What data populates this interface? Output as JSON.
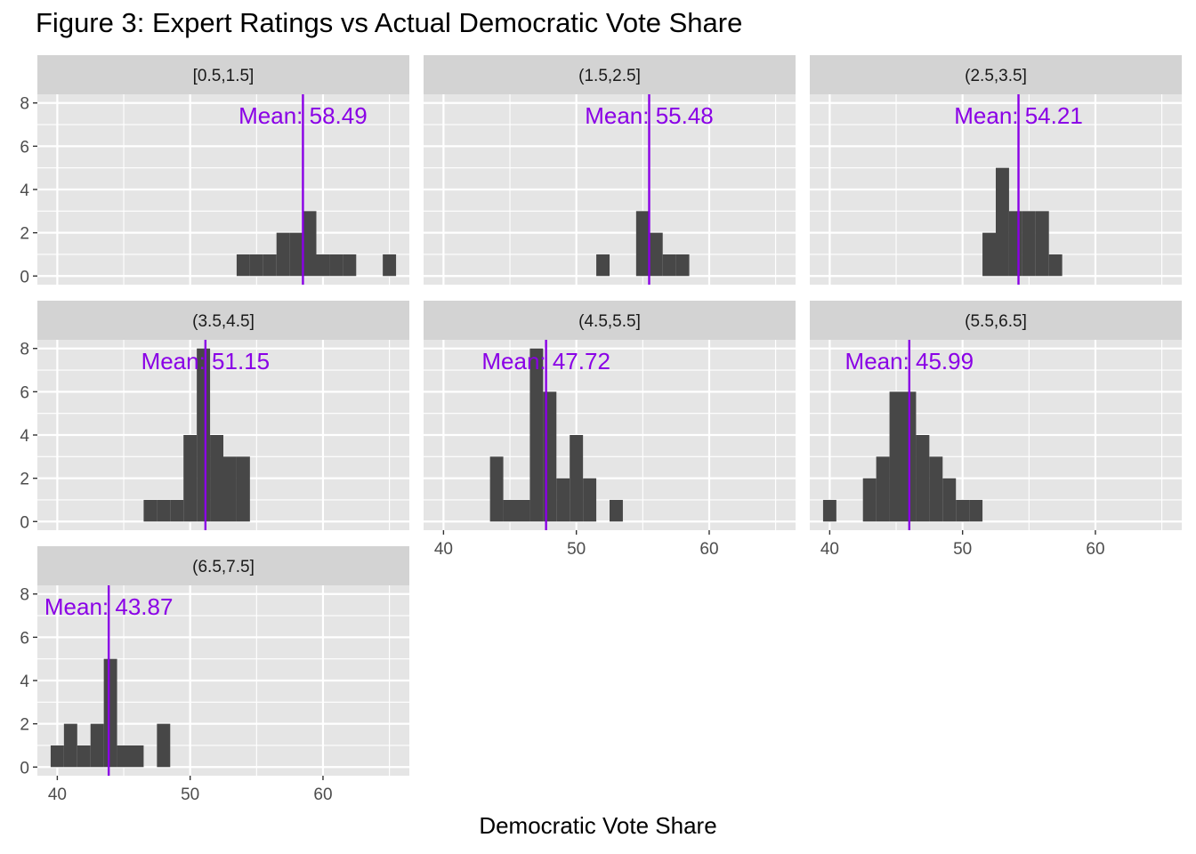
{
  "chart_data": {
    "type": "histogram-facets",
    "title": "Figure 3: Expert Ratings vs Actual Democratic Vote Share",
    "xlabel": "Democratic Vote Share",
    "ylabel": "",
    "xlim": [
      38.5,
      66.5
    ],
    "ylim": [
      -0.4,
      8.4
    ],
    "x_ticks": [
      40,
      50,
      60
    ],
    "y_ticks": [
      0,
      2,
      4,
      6,
      8
    ],
    "bin_width": 1,
    "colors": {
      "bars": "#474747",
      "mean_line": "#8A00E6",
      "panel_bg": "#E5E5E5",
      "strip_bg": "#D3D3D3",
      "grid": "#FFFFFF"
    },
    "facets": [
      {
        "label": "[0.5,1.5]",
        "mean": 58.49,
        "mean_label": "Mean: 58.49",
        "bins": [
          [
            54,
            1
          ],
          [
            55,
            1
          ],
          [
            56,
            1
          ],
          [
            57,
            2
          ],
          [
            58,
            2
          ],
          [
            59,
            3
          ],
          [
            60,
            1
          ],
          [
            61,
            1
          ],
          [
            62,
            1
          ],
          [
            65,
            1
          ]
        ]
      },
      {
        "label": "(1.5,2.5]",
        "mean": 55.48,
        "mean_label": "Mean: 55.48",
        "bins": [
          [
            52,
            1
          ],
          [
            55,
            3
          ],
          [
            56,
            2
          ],
          [
            57,
            1
          ],
          [
            58,
            1
          ]
        ]
      },
      {
        "label": "(2.5,3.5]",
        "mean": 54.21,
        "mean_label": "Mean: 54.21",
        "bins": [
          [
            52,
            2
          ],
          [
            53,
            5
          ],
          [
            54,
            3
          ],
          [
            55,
            3
          ],
          [
            56,
            3
          ],
          [
            57,
            1
          ]
        ]
      },
      {
        "label": "(3.5,4.5]",
        "mean": 51.15,
        "mean_label": "Mean: 51.15",
        "bins": [
          [
            47,
            1
          ],
          [
            48,
            1
          ],
          [
            49,
            1
          ],
          [
            50,
            4
          ],
          [
            51,
            8
          ],
          [
            52,
            4
          ],
          [
            53,
            3
          ],
          [
            54,
            3
          ]
        ]
      },
      {
        "label": "(4.5,5.5]",
        "mean": 47.72,
        "mean_label": "Mean: 47.72",
        "bins": [
          [
            44,
            3
          ],
          [
            45,
            1
          ],
          [
            46,
            1
          ],
          [
            47,
            8
          ],
          [
            48,
            6
          ],
          [
            49,
            2
          ],
          [
            50,
            4
          ],
          [
            51,
            2
          ],
          [
            53,
            1
          ]
        ]
      },
      {
        "label": "(5.5,6.5]",
        "mean": 45.99,
        "mean_label": "Mean: 45.99",
        "bins": [
          [
            40,
            1
          ],
          [
            43,
            2
          ],
          [
            44,
            3
          ],
          [
            45,
            6
          ],
          [
            46,
            6
          ],
          [
            47,
            4
          ],
          [
            48,
            3
          ],
          [
            49,
            2
          ],
          [
            50,
            1
          ],
          [
            51,
            1
          ]
        ]
      },
      {
        "label": "(6.5,7.5]",
        "mean": 43.87,
        "mean_label": "Mean: 43.87",
        "bins": [
          [
            40,
            1
          ],
          [
            41,
            2
          ],
          [
            42,
            1
          ],
          [
            43,
            2
          ],
          [
            44,
            5
          ],
          [
            45,
            1
          ],
          [
            46,
            1
          ],
          [
            48,
            2
          ]
        ]
      }
    ]
  }
}
